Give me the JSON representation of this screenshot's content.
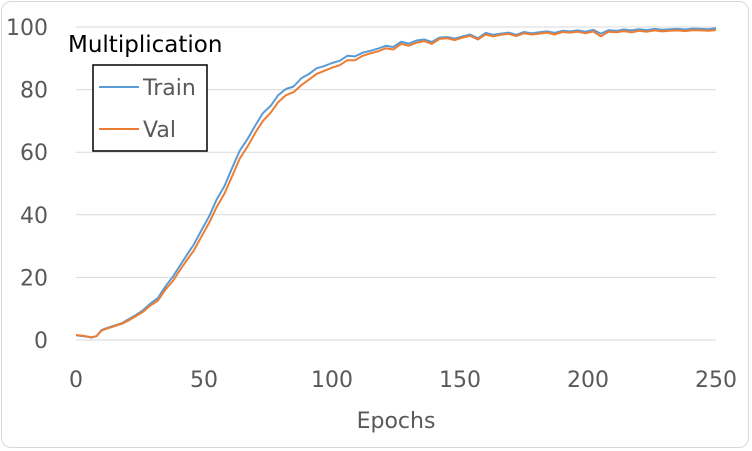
{
  "chart_data": {
    "type": "line",
    "title": "Multiplication",
    "xlabel": "Epochs",
    "ylabel": "",
    "xlim": [
      0,
      250
    ],
    "ylim": [
      0,
      100
    ],
    "x_ticks": [
      0,
      50,
      100,
      150,
      200,
      250
    ],
    "y_ticks": [
      0,
      20,
      40,
      60,
      80,
      100
    ],
    "grid": "horizontal",
    "legend": "top-left",
    "series": [
      {
        "name": "Train",
        "color": "#5b9bd5",
        "x": [
          0,
          3,
          6,
          8,
          10,
          12,
          15,
          18,
          20,
          23,
          26,
          29,
          32,
          35,
          38,
          40,
          43,
          46,
          49,
          52,
          55,
          58,
          61,
          64,
          67,
          70,
          73,
          76,
          79,
          82,
          85,
          88,
          91,
          94,
          97,
          100,
          103,
          106,
          109,
          112,
          115,
          118,
          121,
          124,
          127,
          130,
          133,
          136,
          139,
          142,
          145,
          148,
          151,
          154,
          157,
          160,
          163,
          166,
          169,
          172,
          175,
          178,
          181,
          184,
          187,
          190,
          193,
          196,
          199,
          202,
          205,
          208,
          211,
          214,
          217,
          220,
          223,
          226,
          229,
          232,
          235,
          238,
          241,
          244,
          247,
          250
        ],
        "values": [
          1.5,
          1.2,
          0.8,
          1.2,
          3.2,
          3.8,
          4.6,
          5.4,
          6.4,
          7.8,
          9.4,
          11.6,
          13.4,
          17.2,
          20.4,
          23.0,
          26.8,
          30.5,
          35.0,
          39.5,
          45.0,
          49.2,
          55.0,
          60.5,
          64.2,
          68.5,
          72.5,
          74.8,
          78.2,
          80.2,
          81.0,
          83.6,
          85.0,
          86.8,
          87.5,
          88.5,
          89.2,
          90.8,
          90.6,
          91.8,
          92.4,
          93.1,
          94.0,
          93.6,
          95.3,
          94.7,
          95.7,
          96.0,
          95.2,
          96.6,
          96.8,
          96.3,
          97.0,
          97.6,
          96.4,
          98.1,
          97.5,
          97.9,
          98.2,
          97.5,
          98.4,
          98.0,
          98.3,
          98.6,
          98.1,
          98.8,
          98.6,
          98.9,
          98.5,
          99.1,
          97.9,
          99.0,
          98.8,
          99.2,
          98.9,
          99.3,
          99.0,
          99.4,
          99.1,
          99.3,
          99.4,
          99.2,
          99.5,
          99.4,
          99.3,
          99.6
        ]
      },
      {
        "name": "Val",
        "color": "#ed7d31",
        "x": [
          0,
          3,
          6,
          8,
          10,
          12,
          15,
          18,
          20,
          23,
          26,
          29,
          32,
          35,
          38,
          40,
          43,
          46,
          49,
          52,
          55,
          58,
          61,
          64,
          67,
          70,
          73,
          76,
          79,
          82,
          85,
          88,
          91,
          94,
          97,
          100,
          103,
          106,
          109,
          112,
          115,
          118,
          121,
          124,
          127,
          130,
          133,
          136,
          139,
          142,
          145,
          148,
          151,
          154,
          157,
          160,
          163,
          166,
          169,
          172,
          175,
          178,
          181,
          184,
          187,
          190,
          193,
          196,
          199,
          202,
          205,
          208,
          211,
          214,
          217,
          220,
          223,
          226,
          229,
          232,
          235,
          238,
          241,
          244,
          247,
          250
        ],
        "values": [
          1.6,
          1.3,
          0.9,
          1.2,
          3.0,
          3.6,
          4.4,
          5.2,
          6.0,
          7.4,
          8.9,
          11.0,
          12.6,
          16.2,
          19.0,
          21.6,
          25.2,
          28.6,
          33.0,
          37.4,
          42.6,
          46.8,
          52.4,
          58.0,
          61.8,
          66.2,
          70.0,
          72.6,
          76.0,
          78.2,
          79.2,
          81.4,
          83.2,
          85.0,
          86.0,
          87.0,
          87.8,
          89.4,
          89.4,
          90.8,
          91.6,
          92.2,
          93.2,
          92.8,
          94.6,
          94.0,
          95.0,
          95.5,
          94.6,
          96.2,
          96.4,
          95.8,
          96.6,
          97.2,
          96.0,
          97.6,
          97.0,
          97.5,
          97.8,
          97.1,
          98.0,
          97.6,
          97.9,
          98.2,
          97.6,
          98.4,
          98.2,
          98.5,
          98.0,
          98.6,
          97.0,
          98.5,
          98.3,
          98.7,
          98.3,
          98.8,
          98.5,
          98.9,
          98.6,
          98.8,
          98.9,
          98.7,
          99.0,
          98.9,
          98.8,
          99.0
        ]
      }
    ]
  }
}
